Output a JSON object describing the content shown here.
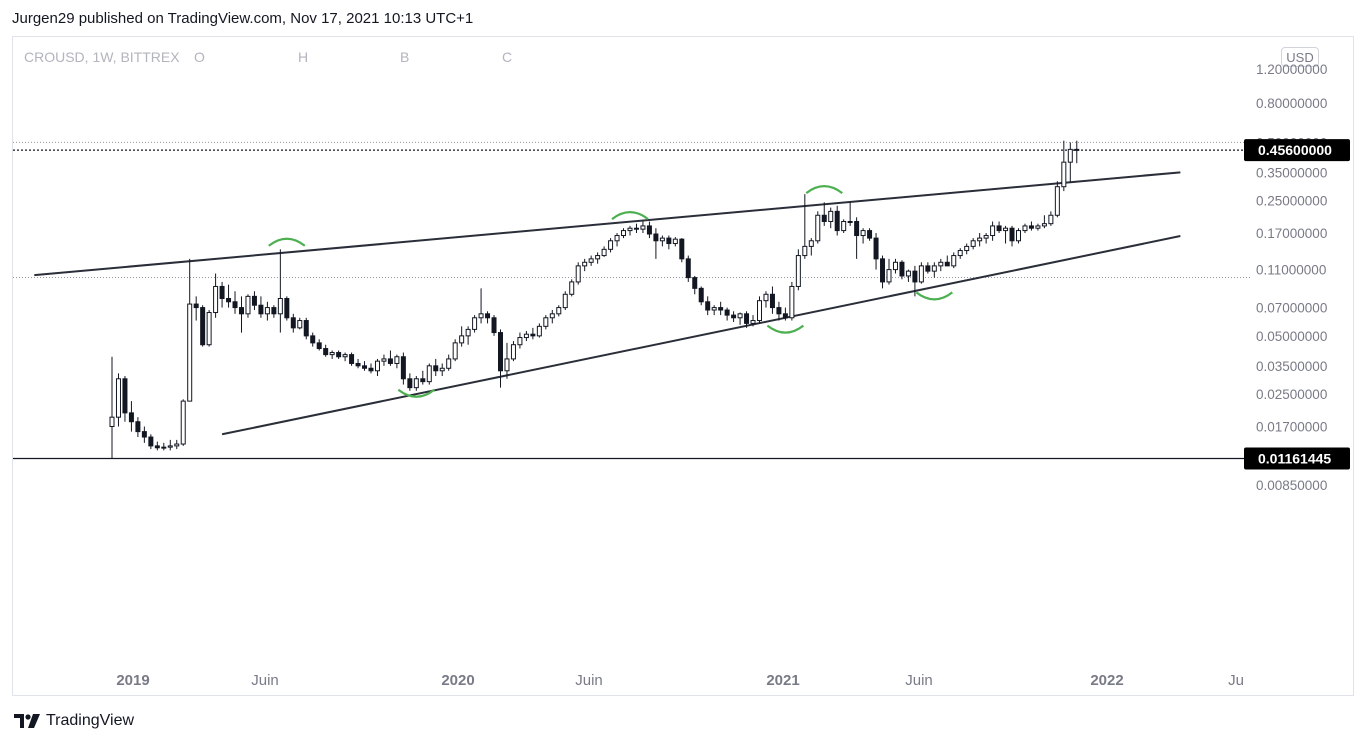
{
  "header": {
    "published": "Jurgen29 published on TradingView.com, Nov 17, 2021 10:13 UTC+1"
  },
  "legend": {
    "symbol": "CROUSD, 1W, BITTREX",
    "o": "O",
    "h": "H",
    "b": "B",
    "c": "C"
  },
  "currency_button": "USD",
  "brand": "TradingView",
  "chart_data": {
    "type": "candlestick",
    "symbol": "CROUSD",
    "interval": "1W",
    "exchange": "BITTREX",
    "y_scale": "log",
    "y_ticks": [
      "1.20000000",
      "0.80000000",
      "0.50000000",
      "0.35000000",
      "0.25000000",
      "0.17000000",
      "0.11000000",
      "0.07000000",
      "0.05000000",
      "0.03500000",
      "0.02500000",
      "0.01700000",
      "0.00850000"
    ],
    "x_ticks": [
      {
        "label": "2019",
        "year": true
      },
      {
        "label": "Juin",
        "year": false
      },
      {
        "label": "2020",
        "year": true
      },
      {
        "label": "Juin",
        "year": false
      },
      {
        "label": "2021",
        "year": true
      },
      {
        "label": "Juin",
        "year": false
      },
      {
        "label": "2022",
        "year": true
      },
      {
        "label": "Ju",
        "year": false
      }
    ],
    "price_labels": [
      {
        "value": "0.45600000"
      },
      {
        "value": "0.01161445"
      }
    ],
    "candles": [
      {
        "o": 0.017,
        "h": 0.039,
        "l": 0.0116,
        "c": 0.019
      },
      {
        "o": 0.019,
        "h": 0.032,
        "l": 0.017,
        "c": 0.03
      },
      {
        "o": 0.03,
        "h": 0.031,
        "l": 0.018,
        "c": 0.02
      },
      {
        "o": 0.02,
        "h": 0.023,
        "l": 0.016,
        "c": 0.018
      },
      {
        "o": 0.018,
        "h": 0.019,
        "l": 0.015,
        "c": 0.016
      },
      {
        "o": 0.016,
        "h": 0.017,
        "l": 0.014,
        "c": 0.015
      },
      {
        "o": 0.015,
        "h": 0.0155,
        "l": 0.013,
        "c": 0.0135
      },
      {
        "o": 0.0135,
        "h": 0.0142,
        "l": 0.0128,
        "c": 0.0132
      },
      {
        "o": 0.0132,
        "h": 0.014,
        "l": 0.0128,
        "c": 0.0133
      },
      {
        "o": 0.0133,
        "h": 0.0145,
        "l": 0.0128,
        "c": 0.0135
      },
      {
        "o": 0.0135,
        "h": 0.0145,
        "l": 0.013,
        "c": 0.0138
      },
      {
        "o": 0.0138,
        "h": 0.0235,
        "l": 0.0135,
        "c": 0.023
      },
      {
        "o": 0.023,
        "h": 0.125,
        "l": 0.023,
        "c": 0.073
      },
      {
        "o": 0.073,
        "h": 0.08,
        "l": 0.06,
        "c": 0.07
      },
      {
        "o": 0.07,
        "h": 0.072,
        "l": 0.044,
        "c": 0.045
      },
      {
        "o": 0.045,
        "h": 0.068,
        "l": 0.044,
        "c": 0.066
      },
      {
        "o": 0.066,
        "h": 0.105,
        "l": 0.062,
        "c": 0.09
      },
      {
        "o": 0.09,
        "h": 0.095,
        "l": 0.07,
        "c": 0.078
      },
      {
        "o": 0.078,
        "h": 0.092,
        "l": 0.07,
        "c": 0.075
      },
      {
        "o": 0.075,
        "h": 0.085,
        "l": 0.065,
        "c": 0.07
      },
      {
        "o": 0.07,
        "h": 0.08,
        "l": 0.052,
        "c": 0.065
      },
      {
        "o": 0.065,
        "h": 0.082,
        "l": 0.062,
        "c": 0.08
      },
      {
        "o": 0.08,
        "h": 0.085,
        "l": 0.068,
        "c": 0.072
      },
      {
        "o": 0.072,
        "h": 0.08,
        "l": 0.062,
        "c": 0.065
      },
      {
        "o": 0.065,
        "h": 0.075,
        "l": 0.06,
        "c": 0.07
      },
      {
        "o": 0.07,
        "h": 0.072,
        "l": 0.062,
        "c": 0.065
      },
      {
        "o": 0.065,
        "h": 0.14,
        "l": 0.052,
        "c": 0.078
      },
      {
        "o": 0.078,
        "h": 0.08,
        "l": 0.06,
        "c": 0.062
      },
      {
        "o": 0.062,
        "h": 0.065,
        "l": 0.052,
        "c": 0.055
      },
      {
        "o": 0.055,
        "h": 0.062,
        "l": 0.054,
        "c": 0.06
      },
      {
        "o": 0.06,
        "h": 0.062,
        "l": 0.048,
        "c": 0.05
      },
      {
        "o": 0.05,
        "h": 0.052,
        "l": 0.044,
        "c": 0.046
      },
      {
        "o": 0.046,
        "h": 0.048,
        "l": 0.042,
        "c": 0.043
      },
      {
        "o": 0.043,
        "h": 0.045,
        "l": 0.039,
        "c": 0.04
      },
      {
        "o": 0.04,
        "h": 0.042,
        "l": 0.038,
        "c": 0.041
      },
      {
        "o": 0.041,
        "h": 0.042,
        "l": 0.038,
        "c": 0.039
      },
      {
        "o": 0.039,
        "h": 0.041,
        "l": 0.037,
        "c": 0.04
      },
      {
        "o": 0.04,
        "h": 0.041,
        "l": 0.035,
        "c": 0.036
      },
      {
        "o": 0.036,
        "h": 0.038,
        "l": 0.034,
        "c": 0.035
      },
      {
        "o": 0.035,
        "h": 0.037,
        "l": 0.033,
        "c": 0.034
      },
      {
        "o": 0.034,
        "h": 0.036,
        "l": 0.032,
        "c": 0.033
      },
      {
        "o": 0.033,
        "h": 0.038,
        "l": 0.031,
        "c": 0.037
      },
      {
        "o": 0.037,
        "h": 0.04,
        "l": 0.035,
        "c": 0.038
      },
      {
        "o": 0.038,
        "h": 0.042,
        "l": 0.035,
        "c": 0.036
      },
      {
        "o": 0.036,
        "h": 0.04,
        "l": 0.034,
        "c": 0.039
      },
      {
        "o": 0.039,
        "h": 0.041,
        "l": 0.028,
        "c": 0.03
      },
      {
        "o": 0.03,
        "h": 0.032,
        "l": 0.026,
        "c": 0.027
      },
      {
        "o": 0.027,
        "h": 0.031,
        "l": 0.026,
        "c": 0.03
      },
      {
        "o": 0.03,
        "h": 0.033,
        "l": 0.028,
        "c": 0.029
      },
      {
        "o": 0.029,
        "h": 0.036,
        "l": 0.028,
        "c": 0.035
      },
      {
        "o": 0.035,
        "h": 0.038,
        "l": 0.031,
        "c": 0.033
      },
      {
        "o": 0.033,
        "h": 0.036,
        "l": 0.031,
        "c": 0.034
      },
      {
        "o": 0.034,
        "h": 0.04,
        "l": 0.033,
        "c": 0.038
      },
      {
        "o": 0.038,
        "h": 0.048,
        "l": 0.037,
        "c": 0.046
      },
      {
        "o": 0.046,
        "h": 0.056,
        "l": 0.044,
        "c": 0.05
      },
      {
        "o": 0.05,
        "h": 0.056,
        "l": 0.045,
        "c": 0.054
      },
      {
        "o": 0.054,
        "h": 0.064,
        "l": 0.052,
        "c": 0.062
      },
      {
        "o": 0.062,
        "h": 0.088,
        "l": 0.058,
        "c": 0.065
      },
      {
        "o": 0.065,
        "h": 0.067,
        "l": 0.058,
        "c": 0.062
      },
      {
        "o": 0.062,
        "h": 0.064,
        "l": 0.05,
        "c": 0.052
      },
      {
        "o": 0.052,
        "h": 0.054,
        "l": 0.027,
        "c": 0.033
      },
      {
        "o": 0.033,
        "h": 0.046,
        "l": 0.03,
        "c": 0.038
      },
      {
        "o": 0.038,
        "h": 0.047,
        "l": 0.037,
        "c": 0.045
      },
      {
        "o": 0.045,
        "h": 0.052,
        "l": 0.043,
        "c": 0.049
      },
      {
        "o": 0.049,
        "h": 0.053,
        "l": 0.047,
        "c": 0.051
      },
      {
        "o": 0.051,
        "h": 0.055,
        "l": 0.048,
        "c": 0.05
      },
      {
        "o": 0.05,
        "h": 0.058,
        "l": 0.049,
        "c": 0.056
      },
      {
        "o": 0.056,
        "h": 0.064,
        "l": 0.054,
        "c": 0.062
      },
      {
        "o": 0.062,
        "h": 0.068,
        "l": 0.058,
        "c": 0.065
      },
      {
        "o": 0.065,
        "h": 0.072,
        "l": 0.063,
        "c": 0.07
      },
      {
        "o": 0.07,
        "h": 0.085,
        "l": 0.068,
        "c": 0.082
      },
      {
        "o": 0.082,
        "h": 0.098,
        "l": 0.08,
        "c": 0.095
      },
      {
        "o": 0.095,
        "h": 0.12,
        "l": 0.092,
        "c": 0.115
      },
      {
        "o": 0.115,
        "h": 0.125,
        "l": 0.108,
        "c": 0.12
      },
      {
        "o": 0.12,
        "h": 0.13,
        "l": 0.115,
        "c": 0.125
      },
      {
        "o": 0.125,
        "h": 0.135,
        "l": 0.118,
        "c": 0.13
      },
      {
        "o": 0.13,
        "h": 0.145,
        "l": 0.128,
        "c": 0.14
      },
      {
        "o": 0.14,
        "h": 0.16,
        "l": 0.135,
        "c": 0.155
      },
      {
        "o": 0.155,
        "h": 0.17,
        "l": 0.145,
        "c": 0.165
      },
      {
        "o": 0.165,
        "h": 0.18,
        "l": 0.16,
        "c": 0.175
      },
      {
        "o": 0.175,
        "h": 0.185,
        "l": 0.165,
        "c": 0.18
      },
      {
        "o": 0.18,
        "h": 0.19,
        "l": 0.17,
        "c": 0.178
      },
      {
        "o": 0.178,
        "h": 0.195,
        "l": 0.17,
        "c": 0.185
      },
      {
        "o": 0.185,
        "h": 0.195,
        "l": 0.16,
        "c": 0.168
      },
      {
        "o": 0.168,
        "h": 0.18,
        "l": 0.125,
        "c": 0.155
      },
      {
        "o": 0.155,
        "h": 0.165,
        "l": 0.145,
        "c": 0.16
      },
      {
        "o": 0.16,
        "h": 0.165,
        "l": 0.14,
        "c": 0.15
      },
      {
        "o": 0.15,
        "h": 0.162,
        "l": 0.145,
        "c": 0.158
      },
      {
        "o": 0.158,
        "h": 0.16,
        "l": 0.12,
        "c": 0.125
      },
      {
        "o": 0.125,
        "h": 0.13,
        "l": 0.095,
        "c": 0.1
      },
      {
        "o": 0.1,
        "h": 0.102,
        "l": 0.082,
        "c": 0.088
      },
      {
        "o": 0.088,
        "h": 0.09,
        "l": 0.072,
        "c": 0.075
      },
      {
        "o": 0.075,
        "h": 0.08,
        "l": 0.064,
        "c": 0.068
      },
      {
        "o": 0.068,
        "h": 0.072,
        "l": 0.064,
        "c": 0.07
      },
      {
        "o": 0.07,
        "h": 0.075,
        "l": 0.064,
        "c": 0.068
      },
      {
        "o": 0.068,
        "h": 0.07,
        "l": 0.06,
        "c": 0.064
      },
      {
        "o": 0.064,
        "h": 0.067,
        "l": 0.059,
        "c": 0.062
      },
      {
        "o": 0.062,
        "h": 0.066,
        "l": 0.057,
        "c": 0.065
      },
      {
        "o": 0.065,
        "h": 0.067,
        "l": 0.055,
        "c": 0.058
      },
      {
        "o": 0.058,
        "h": 0.064,
        "l": 0.056,
        "c": 0.06
      },
      {
        "o": 0.06,
        "h": 0.08,
        "l": 0.058,
        "c": 0.076
      },
      {
        "o": 0.076,
        "h": 0.085,
        "l": 0.07,
        "c": 0.082
      },
      {
        "o": 0.082,
        "h": 0.09,
        "l": 0.065,
        "c": 0.07
      },
      {
        "o": 0.07,
        "h": 0.075,
        "l": 0.06,
        "c": 0.065
      },
      {
        "o": 0.065,
        "h": 0.07,
        "l": 0.06,
        "c": 0.062
      },
      {
        "o": 0.062,
        "h": 0.095,
        "l": 0.06,
        "c": 0.09
      },
      {
        "o": 0.09,
        "h": 0.14,
        "l": 0.086,
        "c": 0.13
      },
      {
        "o": 0.13,
        "h": 0.27,
        "l": 0.125,
        "c": 0.145
      },
      {
        "o": 0.145,
        "h": 0.16,
        "l": 0.13,
        "c": 0.155
      },
      {
        "o": 0.155,
        "h": 0.22,
        "l": 0.15,
        "c": 0.21
      },
      {
        "o": 0.21,
        "h": 0.245,
        "l": 0.185,
        "c": 0.195
      },
      {
        "o": 0.195,
        "h": 0.23,
        "l": 0.18,
        "c": 0.22
      },
      {
        "o": 0.22,
        "h": 0.235,
        "l": 0.165,
        "c": 0.175
      },
      {
        "o": 0.175,
        "h": 0.2,
        "l": 0.17,
        "c": 0.195
      },
      {
        "o": 0.195,
        "h": 0.245,
        "l": 0.185,
        "c": 0.195
      },
      {
        "o": 0.195,
        "h": 0.205,
        "l": 0.125,
        "c": 0.165
      },
      {
        "o": 0.165,
        "h": 0.18,
        "l": 0.15,
        "c": 0.175
      },
      {
        "o": 0.175,
        "h": 0.18,
        "l": 0.155,
        "c": 0.16
      },
      {
        "o": 0.16,
        "h": 0.17,
        "l": 0.11,
        "c": 0.125
      },
      {
        "o": 0.125,
        "h": 0.13,
        "l": 0.088,
        "c": 0.095
      },
      {
        "o": 0.095,
        "h": 0.125,
        "l": 0.092,
        "c": 0.11
      },
      {
        "o": 0.11,
        "h": 0.125,
        "l": 0.105,
        "c": 0.12
      },
      {
        "o": 0.12,
        "h": 0.123,
        "l": 0.098,
        "c": 0.102
      },
      {
        "o": 0.102,
        "h": 0.11,
        "l": 0.095,
        "c": 0.108
      },
      {
        "o": 0.108,
        "h": 0.115,
        "l": 0.08,
        "c": 0.095
      },
      {
        "o": 0.095,
        "h": 0.12,
        "l": 0.093,
        "c": 0.115
      },
      {
        "o": 0.115,
        "h": 0.12,
        "l": 0.105,
        "c": 0.108
      },
      {
        "o": 0.108,
        "h": 0.12,
        "l": 0.1,
        "c": 0.115
      },
      {
        "o": 0.115,
        "h": 0.125,
        "l": 0.108,
        "c": 0.12
      },
      {
        "o": 0.12,
        "h": 0.13,
        "l": 0.115,
        "c": 0.115
      },
      {
        "o": 0.115,
        "h": 0.135,
        "l": 0.112,
        "c": 0.13
      },
      {
        "o": 0.13,
        "h": 0.142,
        "l": 0.125,
        "c": 0.138
      },
      {
        "o": 0.138,
        "h": 0.15,
        "l": 0.132,
        "c": 0.145
      },
      {
        "o": 0.145,
        "h": 0.16,
        "l": 0.14,
        "c": 0.155
      },
      {
        "o": 0.155,
        "h": 0.17,
        "l": 0.145,
        "c": 0.16
      },
      {
        "o": 0.16,
        "h": 0.17,
        "l": 0.15,
        "c": 0.165
      },
      {
        "o": 0.165,
        "h": 0.195,
        "l": 0.155,
        "c": 0.185
      },
      {
        "o": 0.185,
        "h": 0.195,
        "l": 0.17,
        "c": 0.175
      },
      {
        "o": 0.175,
        "h": 0.185,
        "l": 0.15,
        "c": 0.18
      },
      {
        "o": 0.18,
        "h": 0.185,
        "l": 0.145,
        "c": 0.155
      },
      {
        "o": 0.155,
        "h": 0.18,
        "l": 0.15,
        "c": 0.175
      },
      {
        "o": 0.175,
        "h": 0.19,
        "l": 0.17,
        "c": 0.185
      },
      {
        "o": 0.185,
        "h": 0.195,
        "l": 0.175,
        "c": 0.18
      },
      {
        "o": 0.18,
        "h": 0.19,
        "l": 0.175,
        "c": 0.185
      },
      {
        "o": 0.185,
        "h": 0.21,
        "l": 0.18,
        "c": 0.19
      },
      {
        "o": 0.19,
        "h": 0.22,
        "l": 0.185,
        "c": 0.21
      },
      {
        "o": 0.21,
        "h": 0.315,
        "l": 0.205,
        "c": 0.295
      },
      {
        "o": 0.295,
        "h": 0.51,
        "l": 0.28,
        "c": 0.395
      },
      {
        "o": 0.395,
        "h": 0.5,
        "l": 0.31,
        "c": 0.46
      },
      {
        "o": 0.46,
        "h": 0.51,
        "l": 0.39,
        "c": 0.456
      }
    ],
    "trendlines": [
      {
        "from": {
          "bar": -12,
          "price": 0.103
        },
        "to": {
          "bar": 165,
          "price": 0.35
        }
      },
      {
        "from": {
          "bar": 17,
          "price": 0.0155
        },
        "to": {
          "bar": 165,
          "price": 0.164
        }
      }
    ],
    "horizontal_levels": [
      0.456,
      0.01161445
    ],
    "dotted_levels": [
      0.5,
      0.1001
    ],
    "highlight_arcs": [
      {
        "bar": 27,
        "price": 0.155,
        "type": "top"
      },
      {
        "bar": 47,
        "price": 0.0248,
        "type": "bottom"
      },
      {
        "bar": 80,
        "price": 0.213,
        "type": "top"
      },
      {
        "bar": 104,
        "price": 0.0532,
        "type": "bottom"
      },
      {
        "bar": 110,
        "price": 0.29,
        "type": "top"
      },
      {
        "bar": 127,
        "price": 0.079,
        "type": "bottom"
      }
    ]
  }
}
